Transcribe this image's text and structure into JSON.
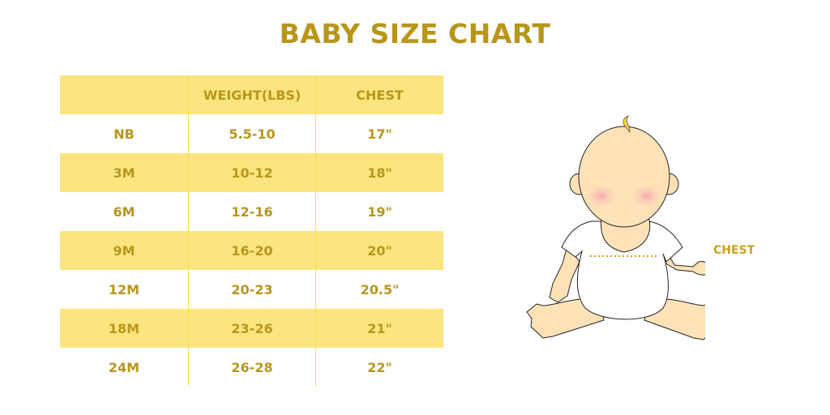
{
  "title": "BABY SIZE CHART",
  "table": {
    "headers": [
      "",
      "WEIGHT(LBS)",
      "CHEST"
    ],
    "rows": [
      [
        "NB",
        "5.5-10",
        "17\""
      ],
      [
        "3M",
        "10-12",
        "18\""
      ],
      [
        "6M",
        "12-16",
        "19\""
      ],
      [
        "9M",
        "16-20",
        "20\""
      ],
      [
        "12M",
        "20-23",
        "20.5\""
      ],
      [
        "18M",
        "23-26",
        "21\""
      ],
      [
        "24M",
        "26-28",
        "22\""
      ]
    ]
  },
  "illustration": {
    "chest_label": "CHEST"
  },
  "colors": {
    "accent": "#B8961A",
    "row_highlight": "#FCE57E",
    "skin": "#FDE2B8"
  }
}
